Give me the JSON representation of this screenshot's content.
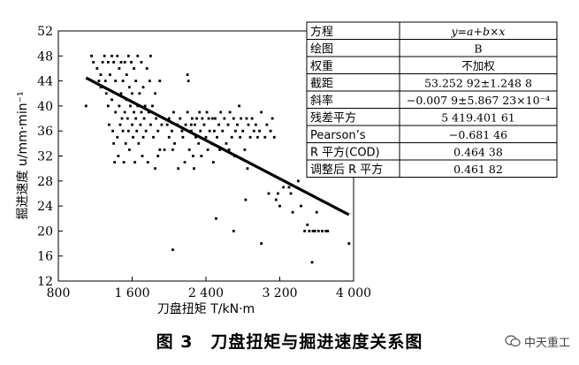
{
  "caption": "图 3　刀盘扭矩与掘进速度关系图",
  "watermark": {
    "text": "中天重工",
    "icon": "wechat-icon"
  },
  "chart_data": {
    "type": "scatter",
    "xlabel": "刀盘扭矩 T/kN·m",
    "ylabel": "掘进速度 u/mm·min⁻¹",
    "xlim": [
      800,
      4000
    ],
    "ylim": [
      12,
      52
    ],
    "xticks": [
      800,
      1600,
      2400,
      3200,
      4000
    ],
    "xtick_labels": [
      "800",
      "1 600",
      "2 400",
      "3 200",
      "4 000"
    ],
    "yticks": [
      12,
      16,
      20,
      24,
      28,
      32,
      36,
      40,
      44,
      48,
      52
    ],
    "grid": false,
    "fit_line": {
      "x": [
        1100,
        3950
      ],
      "y": [
        44.5,
        22.6
      ]
    },
    "series": [
      {
        "points": [
          [
            1100,
            40
          ],
          [
            1160,
            48
          ],
          [
            1180,
            47
          ],
          [
            1220,
            46
          ],
          [
            1240,
            44
          ],
          [
            1260,
            45
          ],
          [
            1260,
            43
          ],
          [
            1280,
            47
          ],
          [
            1300,
            48
          ],
          [
            1310,
            44
          ],
          [
            1320,
            42
          ],
          [
            1340,
            47
          ],
          [
            1340,
            40
          ],
          [
            1350,
            37
          ],
          [
            1360,
            45
          ],
          [
            1380,
            48
          ],
          [
            1380,
            41
          ],
          [
            1390,
            36
          ],
          [
            1400,
            47
          ],
          [
            1400,
            34
          ],
          [
            1410,
            31
          ],
          [
            1420,
            39
          ],
          [
            1420,
            44
          ],
          [
            1440,
            48
          ],
          [
            1440,
            35
          ],
          [
            1450,
            32
          ],
          [
            1460,
            46
          ],
          [
            1460,
            40
          ],
          [
            1470,
            37
          ],
          [
            1480,
            47
          ],
          [
            1480,
            42
          ],
          [
            1490,
            38
          ],
          [
            1500,
            44
          ],
          [
            1500,
            36
          ],
          [
            1510,
            31
          ],
          [
            1520,
            39
          ],
          [
            1520,
            47
          ],
          [
            1530,
            34
          ],
          [
            1540,
            41
          ],
          [
            1540,
            45
          ],
          [
            1550,
            38
          ],
          [
            1560,
            48
          ],
          [
            1560,
            36
          ],
          [
            1570,
            43
          ],
          [
            1570,
            33
          ],
          [
            1580,
            40
          ],
          [
            1590,
            47
          ],
          [
            1600,
            37
          ],
          [
            1600,
            42
          ],
          [
            1610,
            35
          ],
          [
            1620,
            39
          ],
          [
            1620,
            46
          ],
          [
            1630,
            31
          ],
          [
            1640,
            44
          ],
          [
            1640,
            38
          ],
          [
            1650,
            36
          ],
          [
            1660,
            48
          ],
          [
            1660,
            40
          ],
          [
            1670,
            34
          ],
          [
            1680,
            42
          ],
          [
            1690,
            37
          ],
          [
            1700,
            47
          ],
          [
            1700,
            39
          ],
          [
            1710,
            32
          ],
          [
            1720,
            35
          ],
          [
            1720,
            43
          ],
          [
            1730,
            38
          ],
          [
            1740,
            40
          ],
          [
            1750,
            36
          ],
          [
            1760,
            46
          ],
          [
            1770,
            31
          ],
          [
            1780,
            39
          ],
          [
            1790,
            44
          ],
          [
            1800,
            48
          ],
          [
            1800,
            37
          ],
          [
            1820,
            40
          ],
          [
            1830,
            35
          ],
          [
            1850,
            42
          ],
          [
            1860,
            38
          ],
          [
            1880,
            36
          ],
          [
            1900,
            44
          ],
          [
            1920,
            37
          ],
          [
            1950,
            33
          ],
          [
            1980,
            37
          ],
          [
            2000,
            38
          ],
          [
            2030,
            36
          ],
          [
            2050,
            39
          ],
          [
            2060,
            34
          ],
          [
            2090,
            37
          ],
          [
            2100,
            30
          ],
          [
            2120,
            38
          ],
          [
            2140,
            36
          ],
          [
            2150,
            35
          ],
          [
            2170,
            31
          ],
          [
            2180,
            37
          ],
          [
            2200,
            39
          ],
          [
            2200,
            45
          ],
          [
            2210,
            44
          ],
          [
            2220,
            33
          ],
          [
            2240,
            36
          ],
          [
            2250,
            38
          ],
          [
            2260,
            32
          ],
          [
            2270,
            30
          ],
          [
            2280,
            37
          ],
          [
            2290,
            35
          ],
          [
            2300,
            38
          ],
          [
            2320,
            34
          ],
          [
            2330,
            39
          ],
          [
            2340,
            36
          ],
          [
            2350,
            32
          ],
          [
            2360,
            38
          ],
          [
            2380,
            37
          ],
          [
            2400,
            35
          ],
          [
            2410,
            39
          ],
          [
            2420,
            33
          ],
          [
            2430,
            38
          ],
          [
            2440,
            36
          ],
          [
            2460,
            34
          ],
          [
            2470,
            38
          ],
          [
            2480,
            31
          ],
          [
            2490,
            36
          ],
          [
            2500,
            38
          ],
          [
            2510,
            22
          ],
          [
            2520,
            35
          ],
          [
            2540,
            37
          ],
          [
            2550,
            33
          ],
          [
            2560,
            39
          ],
          [
            2580,
            36
          ],
          [
            2600,
            38
          ],
          [
            2620,
            34
          ],
          [
            2640,
            37
          ],
          [
            2650,
            33
          ],
          [
            2660,
            39
          ],
          [
            2680,
            35
          ],
          [
            2700,
            38
          ],
          [
            2710,
            32
          ],
          [
            2720,
            36
          ],
          [
            2740,
            37
          ],
          [
            2760,
            40
          ],
          [
            2770,
            35
          ],
          [
            2780,
            38
          ],
          [
            2800,
            36
          ],
          [
            2820,
            33
          ],
          [
            2830,
            25
          ],
          [
            2840,
            38
          ],
          [
            2850,
            30
          ],
          [
            2860,
            37
          ],
          [
            2880,
            35
          ],
          [
            2900,
            38
          ],
          [
            2920,
            36
          ],
          [
            2940,
            37
          ],
          [
            2960,
            35
          ],
          [
            2980,
            36
          ],
          [
            3000,
            39
          ],
          [
            3000,
            18
          ],
          [
            3040,
            35
          ],
          [
            3060,
            37
          ],
          [
            3080,
            26
          ],
          [
            3100,
            36
          ],
          [
            3120,
            38
          ],
          [
            3140,
            35
          ],
          [
            3160,
            25
          ],
          [
            3180,
            26
          ],
          [
            3200,
            24
          ],
          [
            3240,
            27
          ],
          [
            3300,
            27
          ],
          [
            3320,
            26
          ],
          [
            3340,
            23
          ],
          [
            3400,
            28
          ],
          [
            3430,
            24
          ],
          [
            3470,
            20
          ],
          [
            3500,
            21
          ],
          [
            3520,
            20
          ],
          [
            3550,
            15
          ],
          [
            3560,
            20
          ],
          [
            3580,
            20
          ],
          [
            3600,
            23
          ],
          [
            3620,
            20
          ],
          [
            3660,
            20
          ],
          [
            3700,
            20
          ],
          [
            3720,
            20
          ],
          [
            2040,
            17
          ],
          [
            2700,
            20
          ],
          [
            1850,
            30
          ],
          [
            1880,
            32
          ],
          [
            1900,
            33
          ],
          [
            2000,
            35
          ],
          [
            2040,
            33
          ],
          [
            2080,
            37
          ],
          [
            2240,
            37
          ],
          [
            3950,
            18
          ]
        ]
      }
    ]
  },
  "table": {
    "rows": [
      [
        "方程",
        "y=a+b×x"
      ],
      [
        "绘图",
        "B"
      ],
      [
        "权重",
        "不加权"
      ],
      [
        "截距",
        "53.252 92±1.248 8"
      ],
      [
        "斜率",
        "−0.007 9±5.867 23×10⁻⁴"
      ],
      [
        "残差平方",
        "5 419.401 61"
      ],
      [
        "Pearson’s",
        "−0.681 46"
      ],
      [
        "R 平方(COD)",
        "0.464 38"
      ],
      [
        "调整后 R 平方",
        "0.461 82"
      ]
    ]
  }
}
